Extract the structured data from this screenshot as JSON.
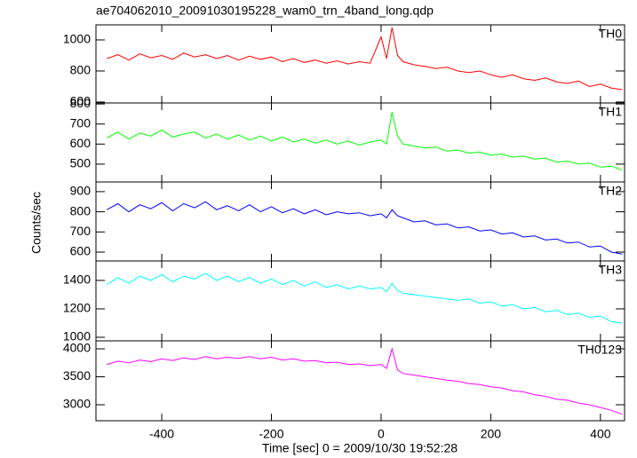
{
  "chart_data": {
    "type": "line",
    "title": "ae704062010_20091030195228_wam0_trn_4band_long.qdp",
    "x_label": "Time [sec] 0 = 2009/10/30 19:52:28",
    "y_label": "Counts/sec",
    "x": [
      -500,
      -480,
      -460,
      -440,
      -420,
      -400,
      -380,
      -360,
      -340,
      -320,
      -300,
      -280,
      -260,
      -240,
      -220,
      -200,
      -180,
      -160,
      -140,
      -120,
      -100,
      -80,
      -60,
      -40,
      -20,
      0,
      10,
      20,
      30,
      40,
      60,
      80,
      100,
      120,
      140,
      160,
      180,
      200,
      220,
      240,
      260,
      280,
      300,
      320,
      340,
      360,
      380,
      400,
      420,
      440
    ],
    "xlim": [
      -520,
      444
    ],
    "xticks": [
      -400,
      -200,
      0,
      200,
      400
    ],
    "series": [
      {
        "name": "TH0",
        "color": "#ff0000",
        "ylim": [
          594,
          1097
        ],
        "yticks": [
          600,
          800,
          1000
        ],
        "values": [
          880,
          905,
          870,
          910,
          885,
          900,
          875,
          915,
          890,
          905,
          880,
          900,
          870,
          895,
          875,
          890,
          860,
          880,
          855,
          870,
          850,
          865,
          845,
          860,
          850,
          1020,
          880,
          1080,
          900,
          860,
          840,
          830,
          815,
          825,
          800,
          790,
          800,
          775,
          760,
          775,
          750,
          740,
          755,
          730,
          720,
          735,
          700,
          715,
          690,
          680
        ]
      },
      {
        "name": "TH1",
        "color": "#00ff00",
        "ylim": [
          411,
          805
        ],
        "yticks": [
          500,
          600,
          700,
          800
        ],
        "values": [
          630,
          660,
          625,
          655,
          640,
          670,
          635,
          650,
          660,
          630,
          650,
          625,
          645,
          620,
          640,
          615,
          635,
          610,
          625,
          605,
          620,
          600,
          615,
          595,
          610,
          620,
          600,
          760,
          640,
          600,
          590,
          580,
          585,
          565,
          570,
          555,
          560,
          545,
          550,
          535,
          540,
          525,
          530,
          510,
          515,
          500,
          505,
          485,
          490,
          470
        ]
      },
      {
        "name": "TH2",
        "color": "#0000ff",
        "ylim": [
          556,
          948
        ],
        "yticks": [
          600,
          700,
          800,
          900
        ],
        "values": [
          810,
          840,
          800,
          835,
          815,
          845,
          805,
          840,
          820,
          850,
          810,
          830,
          805,
          835,
          800,
          825,
          795,
          815,
          790,
          810,
          785,
          800,
          790,
          795,
          780,
          790,
          770,
          810,
          780,
          770,
          750,
          755,
          735,
          740,
          720,
          725,
          705,
          710,
          690,
          695,
          675,
          680,
          660,
          665,
          645,
          650,
          625,
          630,
          600,
          590
        ]
      },
      {
        "name": "TH3",
        "color": "#00ffff",
        "ylim": [
          975,
          1537
        ],
        "yticks": [
          1000,
          1200,
          1400
        ],
        "values": [
          1370,
          1420,
          1380,
          1430,
          1400,
          1440,
          1390,
          1430,
          1410,
          1450,
          1400,
          1430,
          1390,
          1420,
          1380,
          1410,
          1370,
          1400,
          1360,
          1390,
          1350,
          1370,
          1340,
          1360,
          1340,
          1350,
          1320,
          1380,
          1330,
          1310,
          1300,
          1290,
          1280,
          1270,
          1260,
          1270,
          1240,
          1250,
          1220,
          1230,
          1200,
          1210,
          1180,
          1190,
          1160,
          1170,
          1140,
          1150,
          1110,
          1100
        ]
      },
      {
        "name": "TH0123",
        "color": "#ff00ff",
        "ylim": [
          2714,
          4143
        ],
        "yticks": [
          3000,
          3500,
          4000
        ],
        "values": [
          3720,
          3780,
          3750,
          3800,
          3770,
          3820,
          3790,
          3840,
          3810,
          3860,
          3820,
          3850,
          3830,
          3860,
          3820,
          3850,
          3800,
          3820,
          3780,
          3790,
          3750,
          3760,
          3720,
          3730,
          3700,
          3720,
          3650,
          4000,
          3620,
          3560,
          3530,
          3500,
          3470,
          3440,
          3420,
          3380,
          3360,
          3320,
          3300,
          3250,
          3230,
          3180,
          3150,
          3100,
          3080,
          3030,
          3000,
          2950,
          2900,
          2830
        ]
      }
    ]
  }
}
